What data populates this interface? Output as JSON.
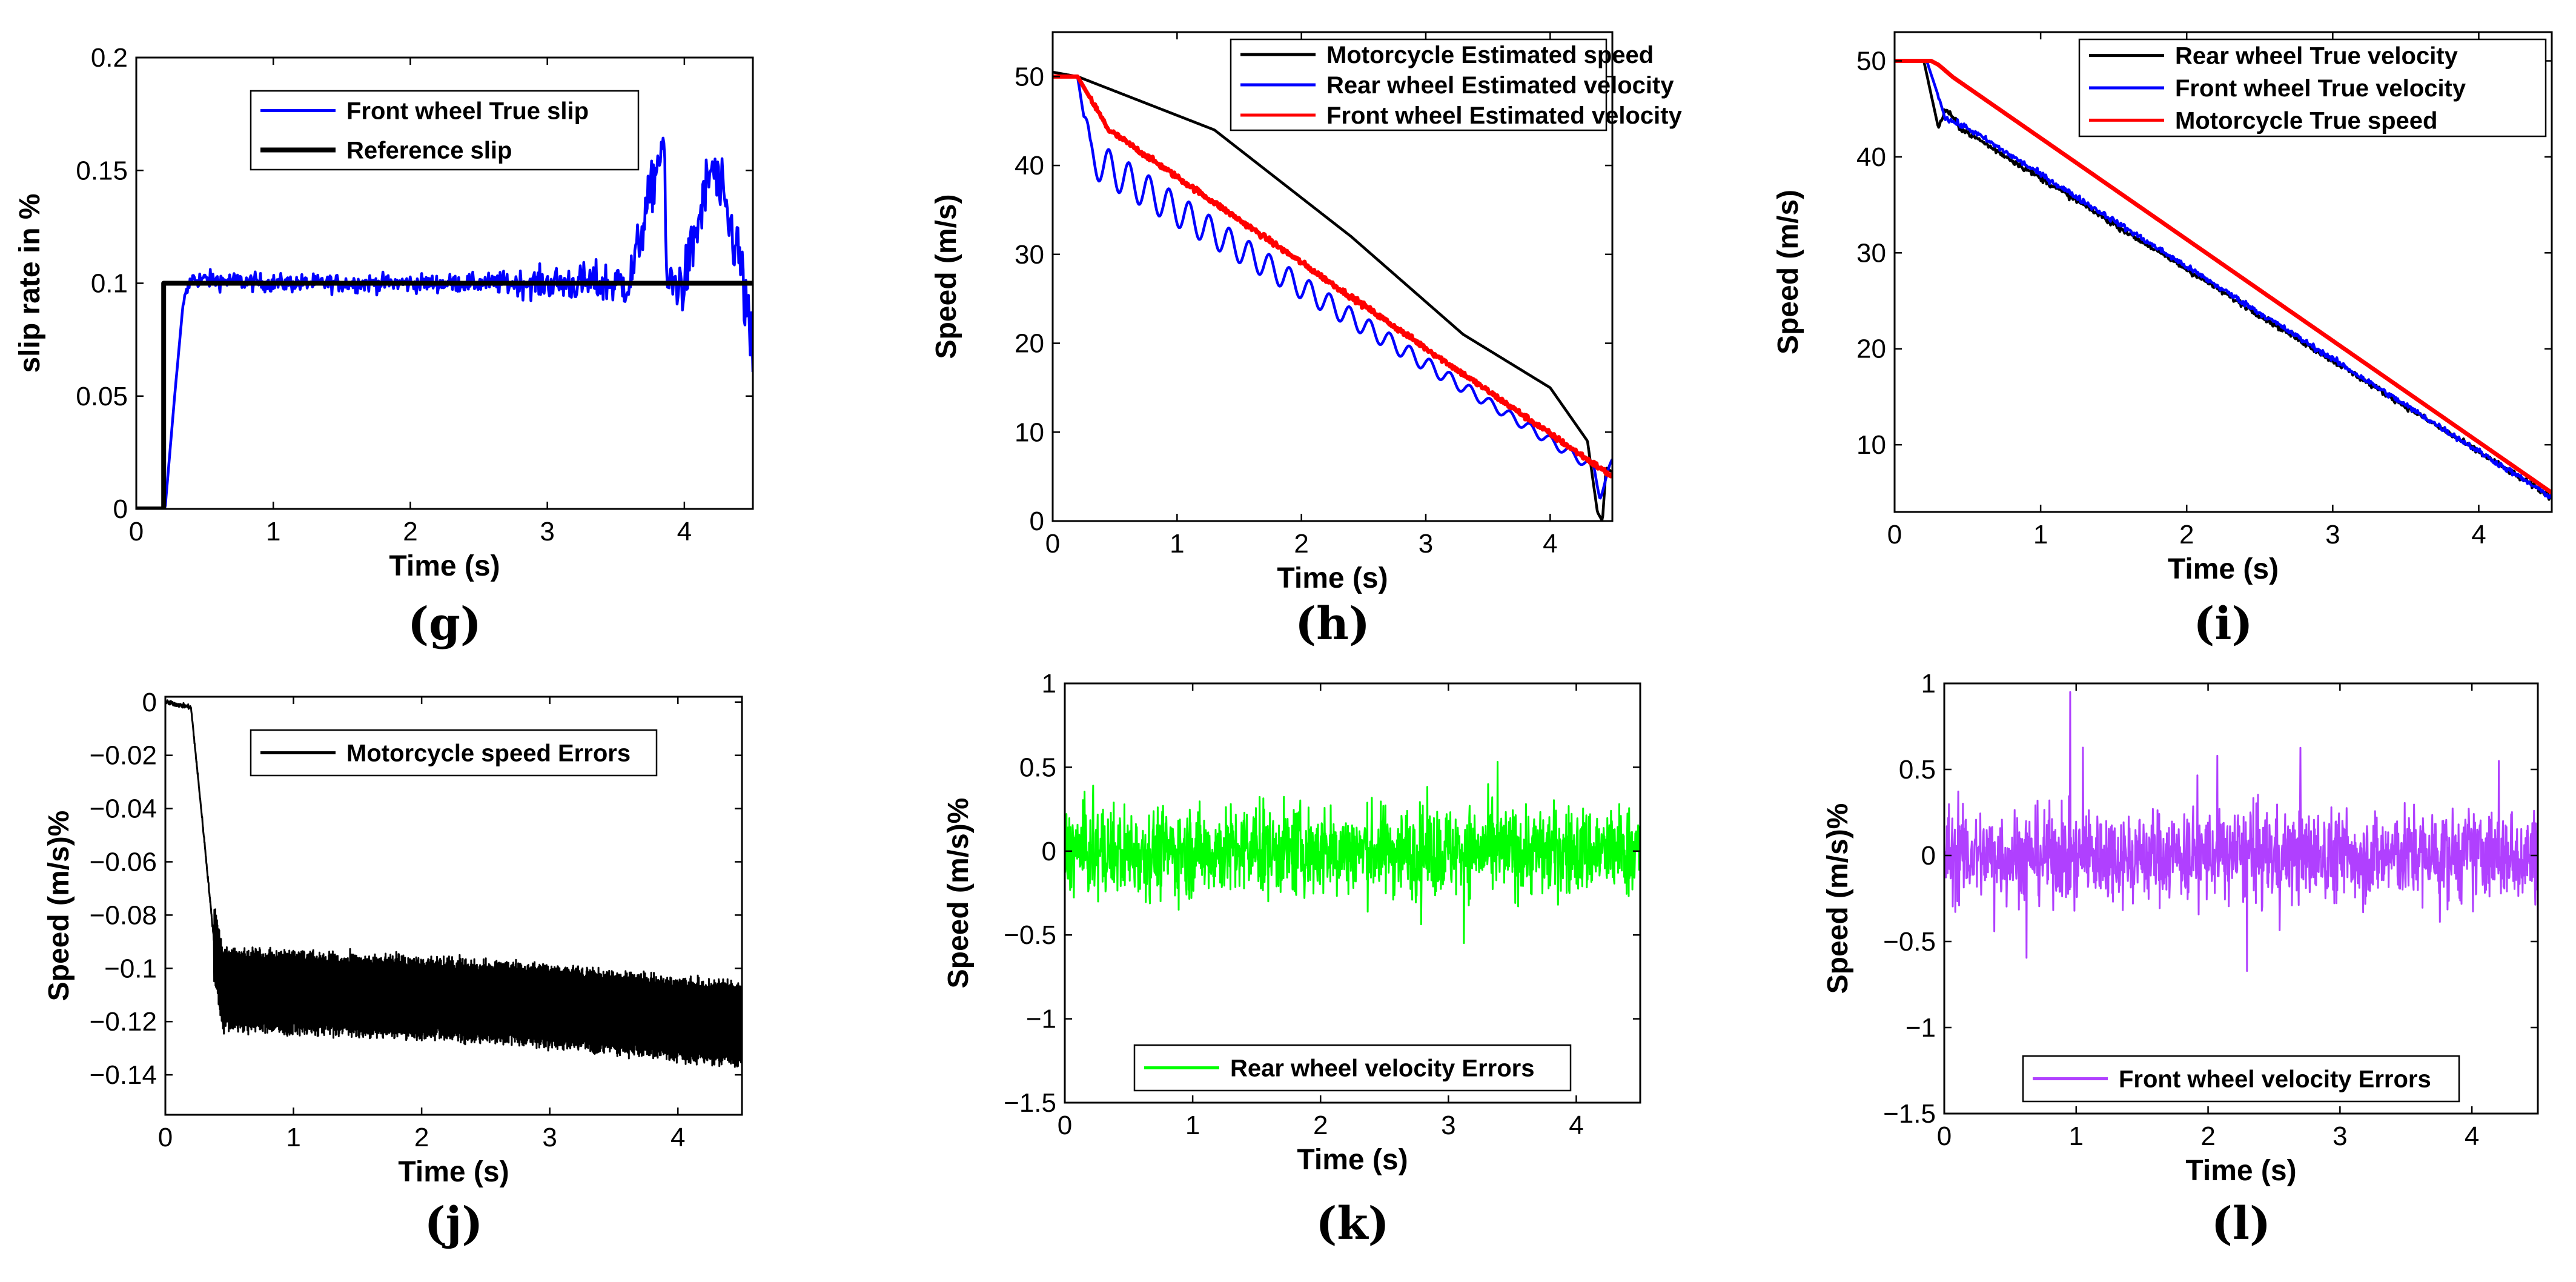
{
  "figure": {
    "background": "#ffffff"
  },
  "chart_data": [
    {
      "panel": "(g)",
      "type": "line",
      "xlabel": "Time (s)",
      "ylabel": "slip rate in %",
      "xlim": [
        0,
        4.5
      ],
      "ylim": [
        0,
        0.2
      ],
      "xticks": [
        "0",
        "1",
        "2",
        "3",
        "4"
      ],
      "yticks": [
        "0",
        "0.05",
        "0.1",
        "0.15",
        "0.2"
      ],
      "legend_position": "top-center",
      "series": [
        {
          "name": "Front wheel True slip",
          "color": "#0000ff",
          "signal": "slip_true",
          "x": [
            0,
            0.21,
            0.28,
            0.34,
            0.4,
            1,
            2,
            3,
            3.6,
            3.85,
            3.87,
            4,
            4.2,
            4.4,
            4.5
          ],
          "y": [
            0,
            0,
            0.05,
            0.09,
            0.102,
            0.1,
            0.1,
            0.1,
            0.1,
            0.165,
            0.1,
            0.1,
            0.152,
            0.112,
            0.065
          ]
        },
        {
          "name": "Reference slip",
          "color": "#000000",
          "signal": "step",
          "x": [
            0,
            0.2,
            0.2,
            4.5
          ],
          "y": [
            0,
            0,
            0.1,
            0.1
          ]
        }
      ]
    },
    {
      "panel": "(h)",
      "type": "line",
      "xlabel": "Time (s)",
      "ylabel": "Speed (m/s)",
      "xlim": [
        0,
        4.5
      ],
      "ylim": [
        0,
        55
      ],
      "xticks": [
        "0",
        "1",
        "2",
        "3",
        "4"
      ],
      "yticks": [
        "0",
        "10",
        "20",
        "30",
        "40",
        "50"
      ],
      "legend_position": "top-right",
      "series": [
        {
          "name": "Motorcycle Estimated speed",
          "color": "#000000",
          "signal": "smooth",
          "x": [
            0,
            0.2,
            1.3,
            2.4,
            3.3,
            4.0,
            4.3,
            4.38,
            4.42,
            4.45,
            4.5
          ],
          "y": [
            50.5,
            50,
            44,
            32,
            21,
            15,
            9,
            1,
            0,
            6,
            5.5
          ]
        },
        {
          "name": "Rear wheel Estimated velocity",
          "color": "#0000ff",
          "signal": "osc_decay",
          "x": [
            0,
            0.2,
            0.3,
            4.35,
            4.4,
            4.5
          ],
          "y": [
            50,
            50,
            41,
            6,
            3,
            6.5
          ]
        },
        {
          "name": "Front wheel Estimated velocity",
          "color": "#ff0000",
          "signal": "smooth_noise",
          "x": [
            0,
            0.2,
            0.45,
            4.5
          ],
          "y": [
            50,
            50,
            44,
            5
          ]
        }
      ]
    },
    {
      "panel": "(i)",
      "type": "line",
      "xlabel": "Time (s)",
      "ylabel": "Speed (m/s)",
      "xlim": [
        0,
        4.5
      ],
      "ylim": [
        3,
        53
      ],
      "xticks": [
        "0",
        "1",
        "2",
        "3",
        "4"
      ],
      "yticks": [
        "10",
        "20",
        "30",
        "40",
        "50"
      ],
      "legend_position": "top-right",
      "series": [
        {
          "name": "Rear wheel True velocity",
          "color": "#000000",
          "signal": "smooth_noise",
          "x": [
            0,
            0.2,
            0.3,
            0.35,
            0.45,
            4.5
          ],
          "y": [
            50,
            50,
            43,
            45,
            43,
            4.5
          ]
        },
        {
          "name": "Front wheel True velocity",
          "color": "#0000ff",
          "signal": "smooth_noise",
          "x": [
            0,
            0.22,
            0.35,
            0.5,
            4.5
          ],
          "y": [
            50,
            50,
            44,
            43,
            4.5
          ]
        },
        {
          "name": "Motorcycle True speed",
          "color": "#ff0000",
          "signal": "smooth",
          "x": [
            0,
            0.25,
            0.3,
            0.4,
            4.5
          ],
          "y": [
            50,
            50,
            49.6,
            48.3,
            5
          ]
        }
      ]
    },
    {
      "panel": "(j)",
      "type": "line",
      "xlabel": "Time (s)",
      "ylabel": "Speed (m/s)%",
      "xlim": [
        0,
        4.5
      ],
      "ylim": [
        -0.155,
        0.002
      ],
      "xticks": [
        "0",
        "1",
        "2",
        "3",
        "4"
      ],
      "yticks": [
        "0",
        "−0.02",
        "−0.04",
        "−0.06",
        "−0.08",
        "−0.1",
        "−0.12",
        "−0.14"
      ],
      "ytick_values": [
        0,
        -0.02,
        -0.04,
        -0.06,
        -0.08,
        -0.1,
        -0.12,
        -0.14
      ],
      "legend_position": "top-center",
      "series": [
        {
          "name": "Motorcycle speed Errors",
          "color": "#000000",
          "signal": "band",
          "x": [
            0,
            0.2,
            0.3,
            0.38,
            0.45,
            1,
            2,
            3,
            4,
            4.5
          ],
          "y": [
            0,
            -0.002,
            -0.05,
            -0.09,
            -0.108,
            -0.109,
            -0.111,
            -0.114,
            -0.119,
            -0.121
          ]
        }
      ]
    },
    {
      "panel": "(k)",
      "type": "line",
      "xlabel": "Time (s)",
      "ylabel": "Speed (m/s)%",
      "xlim": [
        0,
        4.5
      ],
      "ylim": [
        -1.5,
        1
      ],
      "xticks": [
        "0",
        "1",
        "2",
        "3",
        "4"
      ],
      "yticks": [
        "−1.5",
        "−1",
        "−0.5",
        "0",
        "0.5",
        "1"
      ],
      "ytick_values": [
        -1.5,
        -1,
        -0.5,
        0,
        0.5,
        1
      ],
      "legend_position": "bottom-center",
      "series": [
        {
          "name": "Rear wheel velocity Errors",
          "color": "#00ff00",
          "signal": "noise",
          "x": [
            0,
            4.5
          ],
          "y": [
            0,
            0
          ]
        }
      ]
    },
    {
      "panel": "(l)",
      "type": "line",
      "xlabel": "Time (s)",
      "ylabel": "Speed (m/s)%",
      "xlim": [
        0,
        4.5
      ],
      "ylim": [
        -1.5,
        1
      ],
      "xticks": [
        "0",
        "1",
        "2",
        "3",
        "4"
      ],
      "yticks": [
        "−1.5",
        "−1",
        "−0.5",
        "0",
        "0.5",
        "1"
      ],
      "ytick_values": [
        -1.5,
        -1,
        -0.5,
        0,
        0.5,
        1
      ],
      "legend_position": "bottom-center",
      "series": [
        {
          "name": "Front wheel velocity Errors",
          "color": "#b040ff",
          "signal": "noise",
          "x": [
            0,
            4.5
          ],
          "y": [
            0,
            0
          ]
        }
      ]
    }
  ]
}
